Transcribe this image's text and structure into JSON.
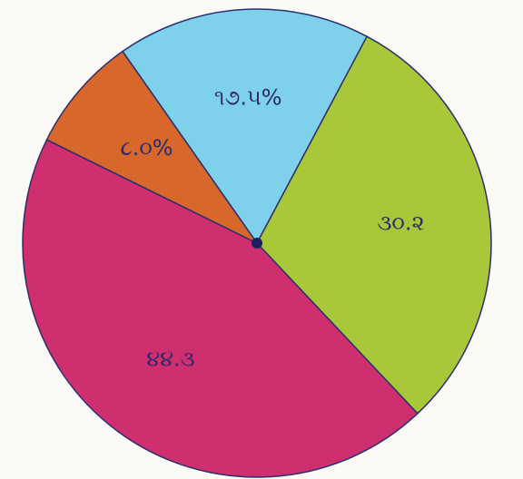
{
  "chart_data": {
    "type": "pie",
    "values": [
      17.5,
      30.2,
      44.3,
      8.0
    ],
    "value_labels": [
      "૧૭.૫%",
      "૩૦.૨",
      "૪૪.૩",
      "૮.૦%"
    ],
    "colors": [
      "#7fd0ea",
      "#a8c83a",
      "#d02f6f",
      "#d8672c"
    ]
  }
}
